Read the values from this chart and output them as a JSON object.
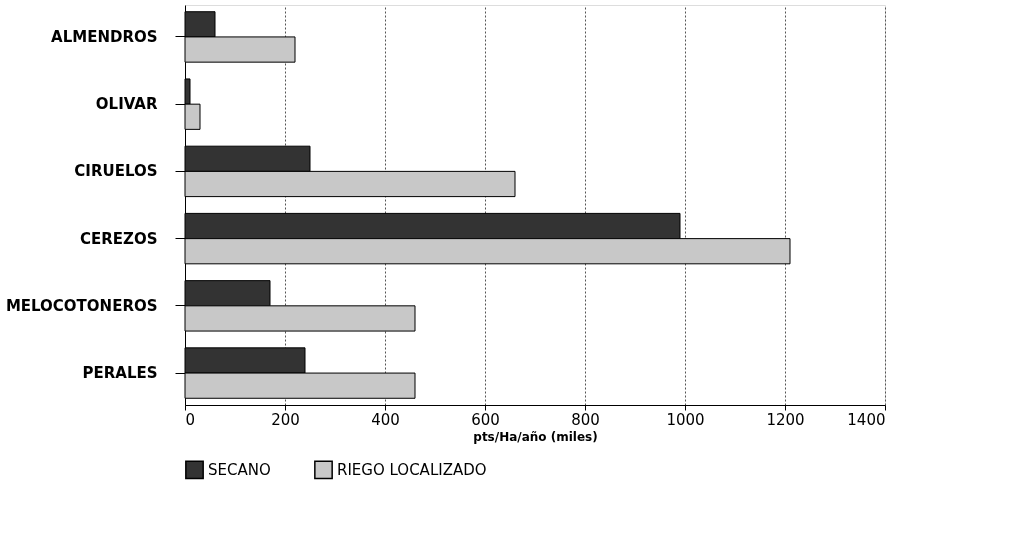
{
  "chart_data": {
    "type": "bar",
    "orientation": "horizontal",
    "xlabel": "pts/Ha/año (miles)",
    "categories": [
      "ALMENDROS",
      "OLIVAR",
      "CIRUELOS",
      "CEREZOS",
      "MELOCOTONEROS",
      "PERALES"
    ],
    "series": [
      {
        "name": "SECANO",
        "color": "#333333",
        "values": [
          60,
          10,
          250,
          990,
          170,
          240
        ]
      },
      {
        "name": "RIEGO LOCALIZADO",
        "color": "#c8c8c8",
        "values": [
          220,
          30,
          660,
          1210,
          460,
          460
        ]
      }
    ],
    "xlim": [
      0,
      1400
    ],
    "xticks": [
      0,
      200,
      400,
      600,
      800,
      1000,
      1200,
      1400
    ],
    "grid": "x",
    "legend": "bottom"
  }
}
